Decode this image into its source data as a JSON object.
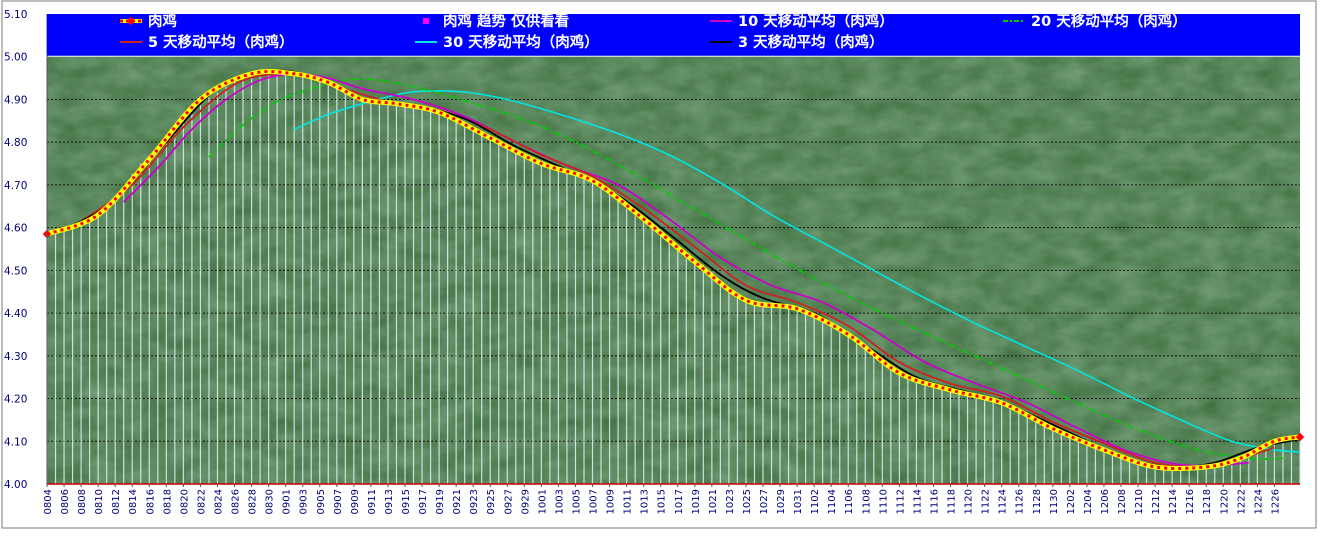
{
  "chart_data": {
    "type": "line",
    "title": "",
    "xlabel": "",
    "ylabel": "",
    "ylim": [
      4.0,
      5.1
    ],
    "y_ticks": [
      "4.00",
      "4.10",
      "4.20",
      "4.30",
      "4.40",
      "4.50",
      "4.60",
      "4.70",
      "4.80",
      "4.90",
      "5.00",
      "5.10"
    ],
    "x_start": "2023-08-04",
    "x_end": "2023-12-29",
    "x_tick_labels": [
      "0804",
      "0806",
      "0808",
      "0810",
      "0812",
      "0814",
      "0816",
      "0818",
      "0820",
      "0822",
      "0824",
      "0826",
      "0828",
      "0830",
      "0901",
      "0903",
      "0905",
      "0907",
      "0909",
      "0911",
      "0913",
      "0915",
      "0917",
      "0919",
      "0921",
      "0923",
      "0925",
      "0927",
      "0929",
      "1001",
      "1003",
      "1005",
      "1007",
      "1009",
      "1011",
      "1013",
      "1015",
      "1017",
      "1019",
      "1021",
      "1023",
      "1025",
      "1027",
      "1029",
      "1031",
      "1102",
      "1104",
      "1106",
      "1108",
      "1110",
      "1112",
      "1114",
      "1116",
      "1118",
      "1120",
      "1122",
      "1124",
      "1126",
      "1128",
      "1130",
      "1202",
      "1204",
      "1206",
      "1208",
      "1210",
      "1212",
      "1214",
      "1216",
      "1218",
      "1220",
      "1222",
      "1224",
      "1226"
    ],
    "grid": true,
    "legend_position": "top",
    "colors": {
      "plot_background": "#3f6f3f",
      "legend_background": "#0000ff",
      "legend_text": "#ffffff",
      "grid": "#000000",
      "drop_lines": "#dde8f0",
      "axis_labels": "#00007a"
    },
    "series": [
      {
        "name": "肉鸡",
        "color": "#ff0000",
        "style": "dotted-thick",
        "marker": "diamond",
        "values": [
          [
            "2023-08-04",
            4.585
          ],
          [
            "2023-08-10",
            4.63
          ],
          [
            "2023-08-16",
            4.76
          ],
          [
            "2023-08-22",
            4.9
          ],
          [
            "2023-08-28",
            4.96
          ],
          [
            "2023-09-02",
            4.96
          ],
          [
            "2023-09-06",
            4.94
          ],
          [
            "2023-09-10",
            4.9
          ],
          [
            "2023-09-14",
            4.89
          ],
          [
            "2023-09-19",
            4.87
          ],
          [
            "2023-09-25",
            4.81
          ],
          [
            "2023-10-01",
            4.75
          ],
          [
            "2023-10-07",
            4.71
          ],
          [
            "2023-10-13",
            4.62
          ],
          [
            "2023-10-19",
            4.52
          ],
          [
            "2023-10-25",
            4.43
          ],
          [
            "2023-10-31",
            4.41
          ],
          [
            "2023-11-06",
            4.35
          ],
          [
            "2023-11-12",
            4.26
          ],
          [
            "2023-11-18",
            4.22
          ],
          [
            "2023-11-24",
            4.19
          ],
          [
            "2023-11-30",
            4.13
          ],
          [
            "2023-12-06",
            4.08
          ],
          [
            "2023-12-12",
            4.04
          ],
          [
            "2023-12-18",
            4.04
          ],
          [
            "2023-12-22",
            4.06
          ],
          [
            "2023-12-26",
            4.1
          ],
          [
            "2023-12-29",
            4.11
          ]
        ]
      },
      {
        "name": "肉鸡 趋势 仅供看看",
        "color": "#ff00ff",
        "style": "marker-only",
        "marker": "square",
        "values": []
      },
      {
        "name": "10 天移动平均（肉鸡）",
        "color": "#cc00cc",
        "style": "solid",
        "values": [
          [
            "2023-08-13",
            4.66
          ],
          [
            "2023-08-17",
            4.74
          ],
          [
            "2023-08-21",
            4.83
          ],
          [
            "2023-08-25",
            4.9
          ],
          [
            "2023-08-29",
            4.945
          ],
          [
            "2023-09-02",
            4.96
          ],
          [
            "2023-09-06",
            4.95
          ],
          [
            "2023-09-10",
            4.925
          ],
          [
            "2023-09-16",
            4.9
          ],
          [
            "2023-09-22",
            4.86
          ],
          [
            "2023-09-28",
            4.8
          ],
          [
            "2023-10-04",
            4.745
          ],
          [
            "2023-10-10",
            4.7
          ],
          [
            "2023-10-16",
            4.62
          ],
          [
            "2023-10-22",
            4.53
          ],
          [
            "2023-10-28",
            4.465
          ],
          [
            "2023-11-03",
            4.425
          ],
          [
            "2023-11-09",
            4.36
          ],
          [
            "2023-11-15",
            4.285
          ],
          [
            "2023-11-21",
            4.235
          ],
          [
            "2023-11-27",
            4.19
          ],
          [
            "2023-12-03",
            4.13
          ],
          [
            "2023-12-09",
            4.075
          ],
          [
            "2023-12-15",
            4.045
          ],
          [
            "2023-12-20",
            4.045
          ],
          [
            "2023-12-23",
            4.05
          ]
        ]
      },
      {
        "name": "20 天移动平均（肉鸡）",
        "color": "#00cc00",
        "style": "dash-dot",
        "values": [
          [
            "2023-08-23",
            4.765
          ],
          [
            "2023-08-27",
            4.84
          ],
          [
            "2023-08-31",
            4.895
          ],
          [
            "2023-09-04",
            4.925
          ],
          [
            "2023-09-08",
            4.945
          ],
          [
            "2023-09-12",
            4.945
          ],
          [
            "2023-09-18",
            4.92
          ],
          [
            "2023-09-24",
            4.885
          ],
          [
            "2023-09-30",
            4.845
          ],
          [
            "2023-10-06",
            4.79
          ],
          [
            "2023-10-12",
            4.725
          ],
          [
            "2023-10-18",
            4.655
          ],
          [
            "2023-10-24",
            4.585
          ],
          [
            "2023-10-30",
            4.515
          ],
          [
            "2023-11-05",
            4.45
          ],
          [
            "2023-11-11",
            4.39
          ],
          [
            "2023-11-17",
            4.335
          ],
          [
            "2023-11-23",
            4.28
          ],
          [
            "2023-11-29",
            4.225
          ],
          [
            "2023-12-05",
            4.17
          ],
          [
            "2023-12-11",
            4.12
          ],
          [
            "2023-12-17",
            4.08
          ],
          [
            "2023-12-23",
            4.06
          ],
          [
            "2023-12-27",
            4.06
          ]
        ]
      },
      {
        "name": "5 天移动平均（肉鸡）",
        "color": "#cc2222",
        "style": "solid",
        "values": [
          [
            "2023-08-08",
            4.615
          ],
          [
            "2023-08-14",
            4.7
          ],
          [
            "2023-08-20",
            4.835
          ],
          [
            "2023-08-26",
            4.935
          ],
          [
            "2023-08-31",
            4.96
          ],
          [
            "2023-09-04",
            4.955
          ],
          [
            "2023-09-08",
            4.925
          ],
          [
            "2023-09-13",
            4.895
          ],
          [
            "2023-09-19",
            4.875
          ],
          [
            "2023-09-25",
            4.83
          ],
          [
            "2023-10-01",
            4.77
          ],
          [
            "2023-10-07",
            4.72
          ],
          [
            "2023-10-13",
            4.645
          ],
          [
            "2023-10-19",
            4.555
          ],
          [
            "2023-10-25",
            4.465
          ],
          [
            "2023-10-31",
            4.425
          ],
          [
            "2023-11-06",
            4.37
          ],
          [
            "2023-11-12",
            4.285
          ],
          [
            "2023-11-18",
            4.235
          ],
          [
            "2023-11-24",
            4.205
          ],
          [
            "2023-11-30",
            4.145
          ],
          [
            "2023-12-06",
            4.095
          ],
          [
            "2023-12-12",
            4.05
          ],
          [
            "2023-12-18",
            4.04
          ],
          [
            "2023-12-22",
            4.06
          ],
          [
            "2023-12-26",
            4.085
          ]
        ]
      },
      {
        "name": "30 天移动平均（肉鸡）",
        "color": "#00e5e5",
        "style": "solid",
        "values": [
          [
            "2023-09-02",
            4.83
          ],
          [
            "2023-09-06",
            4.865
          ],
          [
            "2023-09-10",
            4.89
          ],
          [
            "2023-09-15",
            4.915
          ],
          [
            "2023-09-19",
            4.92
          ],
          [
            "2023-09-23",
            4.915
          ],
          [
            "2023-09-28",
            4.895
          ],
          [
            "2023-10-04",
            4.86
          ],
          [
            "2023-10-10",
            4.82
          ],
          [
            "2023-10-16",
            4.77
          ],
          [
            "2023-10-22",
            4.705
          ],
          [
            "2023-10-28",
            4.63
          ],
          [
            "2023-11-03",
            4.565
          ],
          [
            "2023-11-09",
            4.5
          ],
          [
            "2023-11-15",
            4.435
          ],
          [
            "2023-11-21",
            4.375
          ],
          [
            "2023-11-27",
            4.32
          ],
          [
            "2023-12-03",
            4.265
          ],
          [
            "2023-12-09",
            4.205
          ],
          [
            "2023-12-15",
            4.15
          ],
          [
            "2023-12-21",
            4.1
          ],
          [
            "2023-12-26",
            4.08
          ],
          [
            "2023-12-29",
            4.075
          ]
        ]
      },
      {
        "name": "3 天移动平均（肉鸡）",
        "color": "#000000",
        "style": "solid",
        "values": [
          [
            "2023-08-06",
            4.595
          ],
          [
            "2023-08-12",
            4.665
          ],
          [
            "2023-08-18",
            4.8
          ],
          [
            "2023-08-24",
            4.925
          ],
          [
            "2023-08-30",
            4.965
          ],
          [
            "2023-09-03",
            4.96
          ],
          [
            "2023-09-07",
            4.93
          ],
          [
            "2023-09-11",
            4.895
          ],
          [
            "2023-09-16",
            4.885
          ],
          [
            "2023-09-22",
            4.855
          ],
          [
            "2023-09-28",
            4.79
          ],
          [
            "2023-10-04",
            4.735
          ],
          [
            "2023-10-10",
            4.675
          ],
          [
            "2023-10-16",
            4.585
          ],
          [
            "2023-10-22",
            4.49
          ],
          [
            "2023-10-27",
            4.435
          ],
          [
            "2023-11-02",
            4.4
          ],
          [
            "2023-11-08",
            4.325
          ],
          [
            "2023-11-14",
            4.25
          ],
          [
            "2023-11-20",
            4.215
          ],
          [
            "2023-11-26",
            4.175
          ],
          [
            "2023-12-02",
            4.12
          ],
          [
            "2023-12-08",
            4.065
          ],
          [
            "2023-12-14",
            4.04
          ],
          [
            "2023-12-19",
            4.05
          ],
          [
            "2023-12-24",
            4.085
          ],
          [
            "2023-12-29",
            4.105
          ]
        ]
      }
    ]
  }
}
